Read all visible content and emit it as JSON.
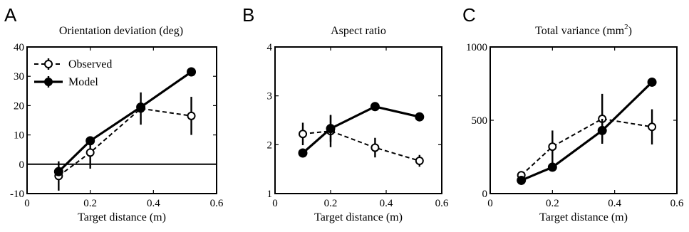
{
  "chart_data": [
    {
      "type": "line",
      "panel": "A",
      "title": "Orientation deviation (deg)",
      "xlabel": "Target distance (m)",
      "ylabel": "",
      "xlim": [
        0,
        0.6
      ],
      "ylim": [
        -10,
        40
      ],
      "xticks": [
        "0",
        "0.2",
        "0.4",
        "0.6"
      ],
      "yticks": [
        "-10",
        "0",
        "10",
        "20",
        "30",
        "40"
      ],
      "zero_line": true,
      "legend_position": "top-left",
      "series": [
        {
          "name": "Observed",
          "style": "dashed-open",
          "x": [
            0.1,
            0.2,
            0.36,
            0.52
          ],
          "y": [
            -4,
            4,
            19,
            16.5
          ],
          "err": [
            5,
            5.5,
            5.5,
            6.5
          ]
        },
        {
          "name": "Model",
          "style": "solid-filled",
          "x": [
            0.1,
            0.2,
            0.36,
            0.52
          ],
          "y": [
            -2.5,
            8,
            19.5,
            31.5
          ],
          "err": [
            1,
            1.5,
            1,
            1.5
          ]
        }
      ]
    },
    {
      "type": "line",
      "panel": "B",
      "title": "Aspect ratio",
      "xlabel": "Target distance (m)",
      "ylabel": "",
      "xlim": [
        0,
        0.6
      ],
      "ylim": [
        1,
        4
      ],
      "xticks": [
        "0",
        "0.2",
        "0.4",
        "0.6"
      ],
      "yticks": [
        "1",
        "2",
        "3",
        "4"
      ],
      "series": [
        {
          "name": "Observed",
          "style": "dashed-open",
          "x": [
            0.1,
            0.2,
            0.36,
            0.52
          ],
          "y": [
            2.22,
            2.28,
            1.94,
            1.67
          ],
          "err": [
            0.23,
            0.33,
            0.2,
            0.12
          ]
        },
        {
          "name": "Model",
          "style": "solid-filled",
          "x": [
            0.1,
            0.2,
            0.36,
            0.52
          ],
          "y": [
            1.83,
            2.33,
            2.78,
            2.57
          ],
          "err": [
            0.03,
            0.27,
            0.05,
            0.03
          ]
        }
      ]
    },
    {
      "type": "line",
      "panel": "C",
      "title": "Total variance (mm",
      "title_sup": "2",
      "title_tail": ")",
      "xlabel": "Target distance (m)",
      "ylabel": "",
      "xlim": [
        0,
        0.6
      ],
      "ylim": [
        0,
        1000
      ],
      "xticks": [
        "0",
        "0.2",
        "0.4",
        "0.6"
      ],
      "yticks": [
        "0",
        "500",
        "1000"
      ],
      "series": [
        {
          "name": "Observed",
          "style": "dashed-open",
          "x": [
            0.1,
            0.2,
            0.36,
            0.52
          ],
          "y": [
            125,
            320,
            510,
            455
          ],
          "err": [
            25,
            110,
            170,
            120
          ]
        },
        {
          "name": "Model",
          "style": "solid-filled",
          "x": [
            0.1,
            0.2,
            0.36,
            0.52
          ],
          "y": [
            90,
            180,
            430,
            760
          ],
          "err": [
            10,
            15,
            80,
            25
          ]
        }
      ]
    }
  ]
}
